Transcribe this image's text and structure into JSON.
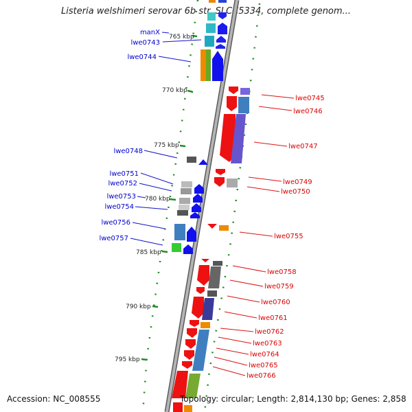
{
  "title": "Listeria welshimeri serovar 6b str. SLCC5334, complete genom...",
  "footer": {
    "accession": "Accession: NC_008555",
    "topology": "Topology: circular; Length: 2,814,130 bp; Genes: 2,858"
  },
  "colors": {
    "forward_label": "#0000cc",
    "reverse_label": "#dd0000",
    "tick": "#228b22",
    "backbone": "#8a8a8a"
  },
  "ticks": [
    "765 kbp",
    "770 kbp",
    "775 kbp",
    "780 kbp",
    "785 kbp",
    "790 kbp",
    "795 kbp"
  ],
  "forward_genes": [
    "manX",
    "lwe0743",
    "lwe0744",
    "lwe0748",
    "lwe0751",
    "lwe0752",
    "lwe0753",
    "lwe0754",
    "lwe0756",
    "lwe0757"
  ],
  "reverse_genes": [
    "lwe0745",
    "lwe0746",
    "lwe0747",
    "lwe0749",
    "lwe0750",
    "lwe0755",
    "lwe0758",
    "lwe0759",
    "lwe0760",
    "lwe0761",
    "lwe0762",
    "lwe0763",
    "lwe0764",
    "lwe0765",
    "lwe0766"
  ]
}
